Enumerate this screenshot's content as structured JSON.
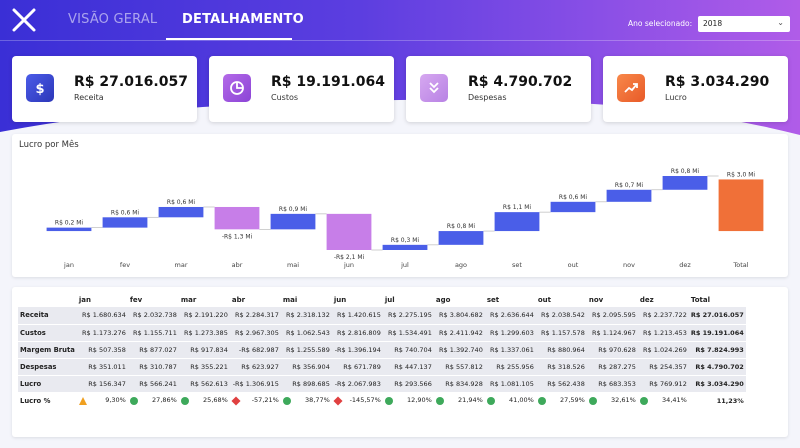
{
  "header": {
    "tabs": [
      {
        "label": "VISÃO GERAL",
        "active": false
      },
      {
        "label": "DETALHAMENTO",
        "active": true
      }
    ],
    "year_label": "Ano selecionado:",
    "year_value": "2018"
  },
  "kpis": [
    {
      "value": "R$ 27.016.057",
      "label": "Receita",
      "icon": "dollar-icon",
      "color": "#3b4fd8"
    },
    {
      "value": "R$ 19.191.064",
      "label": "Custos",
      "icon": "pie-chart-icon",
      "color": "#a65be0"
    },
    {
      "value": "R$ 4.790.702",
      "label": "Despesas",
      "icon": "double-chevron-down-icon",
      "color": "#c89be8"
    },
    {
      "value": "R$ 3.034.290",
      "label": "Lucro",
      "icon": "trend-up-icon",
      "color": "#f07038"
    }
  ],
  "chart_data": {
    "type": "waterfall",
    "title": "Lucro por Mês",
    "categories": [
      "jan",
      "fev",
      "mar",
      "abr",
      "mai",
      "jun",
      "jul",
      "ago",
      "set",
      "out",
      "nov",
      "dez",
      "Total"
    ],
    "values": [
      0.2,
      0.6,
      0.6,
      -1.3,
      0.9,
      -2.1,
      0.3,
      0.8,
      1.1,
      0.6,
      0.7,
      0.8,
      3.0
    ],
    "data_labels": [
      "R$ 0,2 Mi",
      "R$ 0,6 Mi",
      "R$ 0,6 Mi",
      "-R$ 1,3 Mi",
      "R$ 0,9 Mi",
      "-R$ 2,1 Mi",
      "R$ 0,3 Mi",
      "R$ 0,8 Mi",
      "R$ 1,1 Mi",
      "R$ 0,6 Mi",
      "R$ 0,7 Mi",
      "R$ 0,8 Mi",
      "R$ 3,0 Mi"
    ],
    "colors": {
      "increase": "#4a5ee8",
      "decrease": "#c77ee8",
      "total": "#f07038"
    },
    "legend": "none"
  },
  "table": {
    "columns": [
      "",
      "jan",
      "fev",
      "mar",
      "abr",
      "mai",
      "jun",
      "jul",
      "ago",
      "set",
      "out",
      "nov",
      "dez",
      "Total"
    ],
    "rows": [
      {
        "label": "Receita",
        "values": [
          "R$ 1.680.634",
          "R$ 2.032.738",
          "R$ 2.191.220",
          "R$ 2.284.317",
          "R$ 2.318.132",
          "R$ 1.420.615",
          "R$ 2.275.195",
          "R$ 3.804.682",
          "R$ 2.636.644",
          "R$ 2.038.542",
          "R$ 2.095.595",
          "R$ 2.237.722",
          "R$ 27.016.057"
        ]
      },
      {
        "label": "Custos",
        "values": [
          "R$ 1.173.276",
          "R$ 1.155.711",
          "R$ 1.273.385",
          "R$ 2.967.305",
          "R$ 1.062.543",
          "R$ 2.816.809",
          "R$ 1.534.491",
          "R$ 2.411.942",
          "R$ 1.299.603",
          "R$ 1.157.578",
          "R$ 1.124.967",
          "R$ 1.213.453",
          "R$ 19.191.064"
        ]
      },
      {
        "label": "Margem Bruta",
        "values": [
          "R$ 507.358",
          "R$ 877.027",
          "R$ 917.834",
          "-R$ 682.987",
          "R$ 1.255.589",
          "-R$ 1.396.194",
          "R$ 740.704",
          "R$ 1.392.740",
          "R$ 1.337.061",
          "R$ 880.964",
          "R$ 970.628",
          "R$ 1.024.269",
          "R$ 7.824.993"
        ]
      },
      {
        "label": "Despesas",
        "values": [
          "R$ 351.011",
          "R$ 310.787",
          "R$ 355.221",
          "R$ 623.927",
          "R$ 356.904",
          "R$ 671.789",
          "R$ 447.137",
          "R$ 557.812",
          "R$ 255.956",
          "R$ 318.526",
          "R$ 287.275",
          "R$ 254.357",
          "R$ 4.790.702"
        ]
      },
      {
        "label": "Lucro",
        "values": [
          "R$ 156.347",
          "R$ 566.241",
          "R$ 562.613",
          "-R$ 1.306.915",
          "R$ 898.685",
          "-R$ 2.067.983",
          "R$ 293.566",
          "R$ 834.928",
          "R$ 1.081.105",
          "R$ 562.438",
          "R$ 683.353",
          "R$ 769.912",
          "R$ 3.034.290"
        ]
      }
    ],
    "margin_row": {
      "label": "Lucro %",
      "values": [
        "9,30%",
        "27,86%",
        "25,68%",
        "-57,21%",
        "38,77%",
        "-145,57%",
        "12,90%",
        "21,94%",
        "41,00%",
        "27,59%",
        "32,61%",
        "34,41%",
        "11,23%"
      ],
      "indicators": [
        "yellow",
        "green",
        "green",
        "red",
        "green",
        "red",
        "green",
        "green",
        "green",
        "green",
        "green",
        "green",
        ""
      ]
    }
  }
}
